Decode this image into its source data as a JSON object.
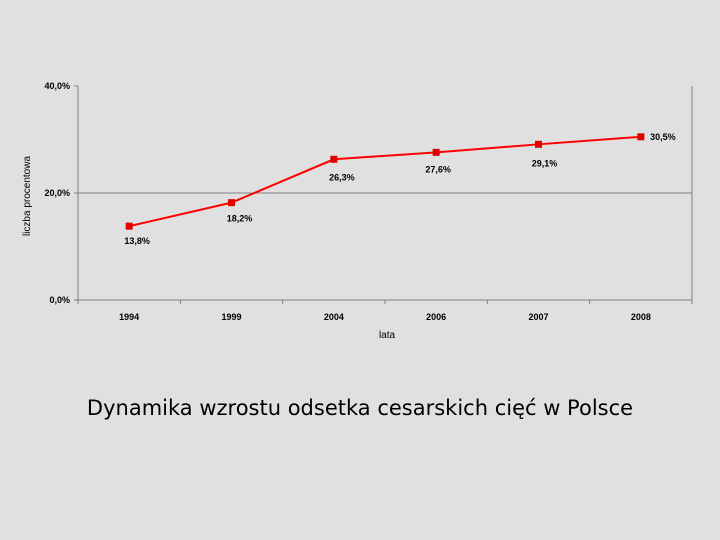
{
  "caption": "Dynamika wzrostu odsetka cesarskich cięć w Polsce",
  "chart_data": {
    "type": "line",
    "categories": [
      "1994",
      "1999",
      "2004",
      "2006",
      "2007",
      "2008"
    ],
    "series": [
      {
        "values": [
          13.8,
          18.2,
          26.3,
          27.6,
          29.1,
          30.5
        ]
      }
    ],
    "data_labels": [
      "13,8%",
      "18,2%",
      "26,3%",
      "27,6%",
      "29,1%",
      "30,5%"
    ],
    "y_ticks": [
      {
        "value": 0,
        "label": "0,0%"
      },
      {
        "value": 20,
        "label": "20,0%"
      },
      {
        "value": 40,
        "label": "40,0%"
      }
    ],
    "ylim": [
      0,
      40
    ],
    "xlabel": "lata",
    "ylabel": "liczba procentowa",
    "line_color": "#ff0000",
    "marker_color": "#e00000",
    "gridline_values": [
      20
    ],
    "legend": "none"
  }
}
